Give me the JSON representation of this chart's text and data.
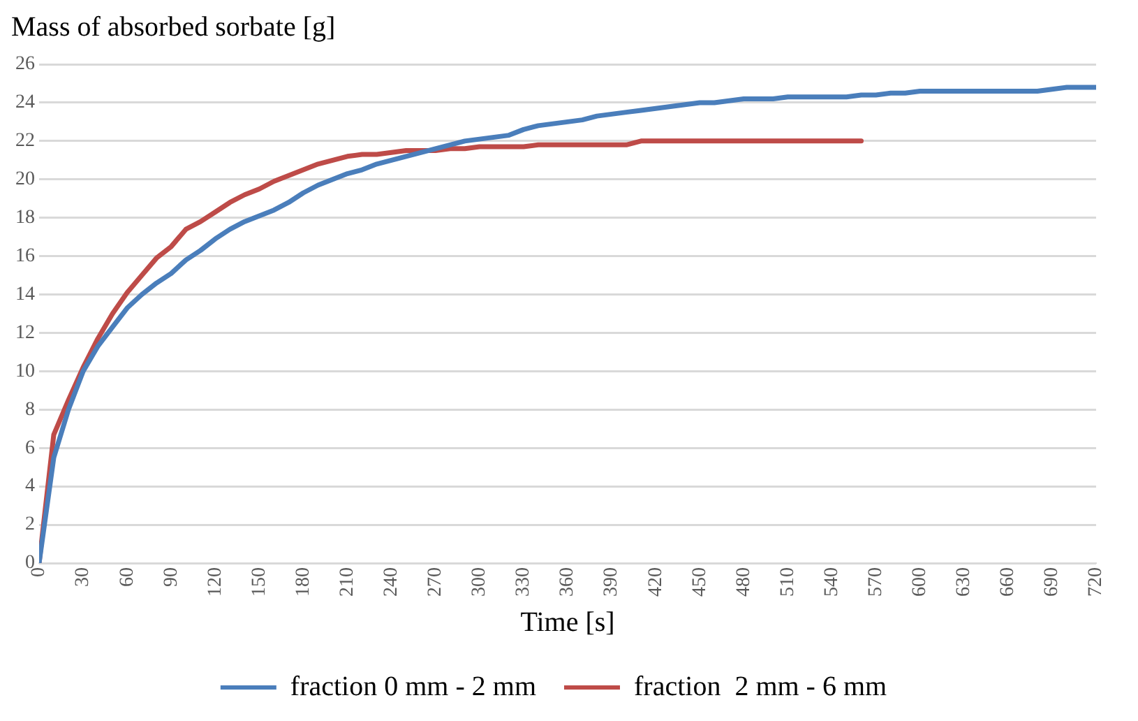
{
  "chart_data": {
    "type": "line",
    "ylabel": "Mass of absorbed sorbate [g]",
    "xlabel": "Time [s]",
    "xlim": [
      0,
      720
    ],
    "xticks": [
      0,
      30,
      60,
      90,
      120,
      150,
      180,
      210,
      240,
      270,
      300,
      330,
      360,
      390,
      420,
      450,
      480,
      510,
      540,
      570,
      600,
      630,
      660,
      690,
      720
    ],
    "ylim": [
      0,
      26
    ],
    "yticks": [
      0,
      2,
      4,
      6,
      8,
      10,
      12,
      14,
      16,
      18,
      20,
      22,
      24,
      26
    ],
    "grid": "y",
    "legend": "bottom",
    "marker": "none",
    "line_style": "solid",
    "series": [
      {
        "name": "fraction 0 mm - 2 mm",
        "color": "#4a7ebb",
        "x": [
          0,
          10,
          20,
          30,
          40,
          50,
          60,
          70,
          80,
          90,
          100,
          110,
          120,
          130,
          140,
          150,
          160,
          170,
          180,
          190,
          200,
          210,
          220,
          230,
          240,
          250,
          260,
          270,
          280,
          290,
          300,
          310,
          320,
          330,
          340,
          350,
          360,
          370,
          380,
          390,
          400,
          410,
          420,
          430,
          440,
          450,
          460,
          470,
          480,
          490,
          500,
          510,
          520,
          530,
          540,
          550,
          560,
          570,
          580,
          590,
          600,
          610,
          620,
          630,
          640,
          650,
          660,
          670,
          680,
          690,
          700,
          710,
          720
        ],
        "values": [
          0,
          5.5,
          8,
          10,
          11.3,
          12.3,
          13.3,
          14,
          14.6,
          15.1,
          15.8,
          16.3,
          16.9,
          17.4,
          17.8,
          18.1,
          18.4,
          18.8,
          19.3,
          19.7,
          20,
          20.3,
          20.5,
          20.8,
          21,
          21.2,
          21.4,
          21.6,
          21.8,
          22,
          22.1,
          22.2,
          22.3,
          22.6,
          22.8,
          22.9,
          23,
          23.1,
          23.3,
          23.4,
          23.5,
          23.6,
          23.7,
          23.8,
          23.9,
          24,
          24,
          24.1,
          24.2,
          24.2,
          24.2,
          24.3,
          24.3,
          24.3,
          24.3,
          24.3,
          24.4,
          24.4,
          24.5,
          24.5,
          24.6,
          24.6,
          24.6,
          24.6,
          24.6,
          24.6,
          24.6,
          24.6,
          24.6,
          24.7,
          24.8,
          24.8,
          24.8
        ]
      },
      {
        "name": "fraction  2 mm - 6 mm",
        "color": "#be4b48",
        "x": [
          0,
          10,
          20,
          30,
          40,
          50,
          60,
          70,
          80,
          90,
          100,
          110,
          120,
          130,
          140,
          150,
          160,
          170,
          180,
          190,
          200,
          210,
          220,
          230,
          240,
          250,
          260,
          270,
          280,
          290,
          300,
          310,
          320,
          330,
          340,
          350,
          360,
          370,
          380,
          390,
          400,
          410,
          420,
          430,
          440,
          450,
          460,
          470,
          480,
          490,
          500,
          510,
          520,
          530,
          540,
          550,
          560
        ],
        "values": [
          0,
          6.7,
          8.5,
          10.2,
          11.7,
          13,
          14.1,
          15,
          15.9,
          16.5,
          17.4,
          17.8,
          18.3,
          18.8,
          19.2,
          19.5,
          19.9,
          20.2,
          20.5,
          20.8,
          21,
          21.2,
          21.3,
          21.3,
          21.4,
          21.5,
          21.5,
          21.5,
          21.6,
          21.6,
          21.7,
          21.7,
          21.7,
          21.7,
          21.8,
          21.8,
          21.8,
          21.8,
          21.8,
          21.8,
          21.8,
          22,
          22,
          22,
          22,
          22,
          22,
          22,
          22,
          22,
          22,
          22,
          22,
          22,
          22,
          22,
          22
        ]
      }
    ]
  }
}
